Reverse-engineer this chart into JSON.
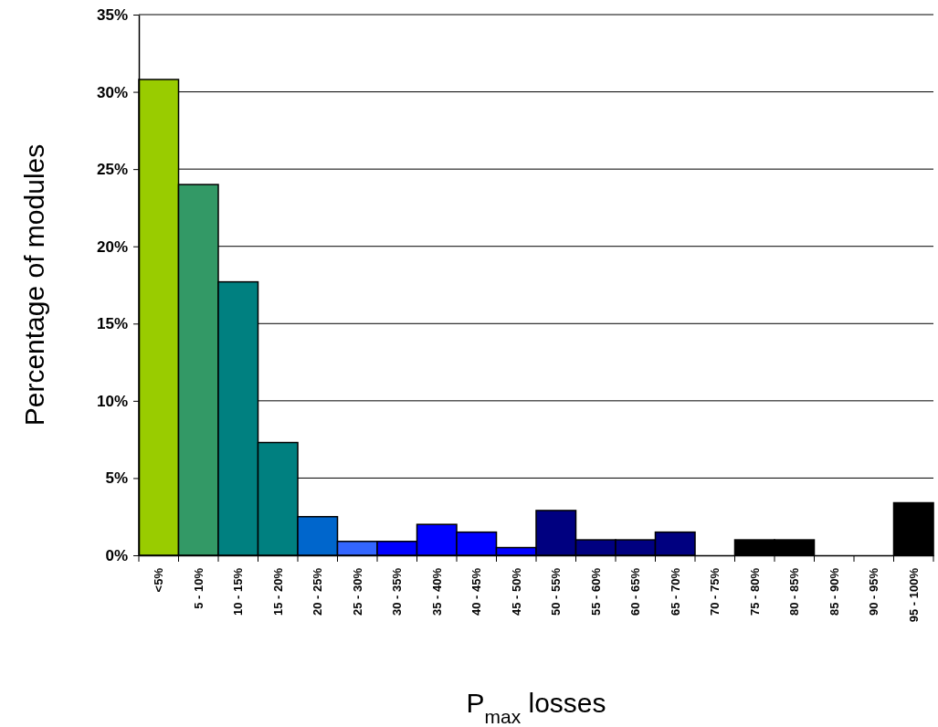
{
  "chart_data": {
    "type": "bar",
    "xlabel": "P$_{max}$ losses",
    "ylabel": "Percentage of modules",
    "categories": [
      "<5%",
      "5 - 10%",
      "10 - 15%",
      "15 - 20%",
      "20 - 25%",
      "25 - 30%",
      "30 - 35%",
      "35 - 40%",
      "40 - 45%",
      "45 - 50%",
      "50 - 55%",
      "55 - 60%",
      "60 - 65%",
      "65 - 70%",
      "70 - 75%",
      "75 - 80%",
      "80 - 85%",
      "85 - 90%",
      "90 - 95%",
      "95 - 100%"
    ],
    "values": [
      30.8,
      24.0,
      17.7,
      7.3,
      2.5,
      0.9,
      0.9,
      2.0,
      1.5,
      0.5,
      2.9,
      1.0,
      1.0,
      1.5,
      0,
      1.0,
      1.0,
      0,
      0,
      3.4
    ],
    "colors": [
      "#99cc00",
      "#339966",
      "#008080",
      "#008080",
      "#0066cc",
      "#3366ff",
      "#0000ff",
      "#0000ff",
      "#0000ff",
      "#0000ff",
      "#000080",
      "#000080",
      "#000080",
      "#000080",
      "#000000",
      "#000000",
      "#000000",
      "#000000",
      "#000000",
      "#000000"
    ],
    "ylim": [
      0,
      35
    ],
    "yticks": [
      {
        "value": 0,
        "label": "0%"
      },
      {
        "value": 5,
        "label": "5%"
      },
      {
        "value": 10,
        "label": "10%"
      },
      {
        "value": 15,
        "label": "15%"
      },
      {
        "value": 20,
        "label": "20%"
      },
      {
        "value": 25,
        "label": "25%"
      },
      {
        "value": 30,
        "label": "30%"
      },
      {
        "value": 35,
        "label": "35%"
      }
    ],
    "grid": "y"
  }
}
